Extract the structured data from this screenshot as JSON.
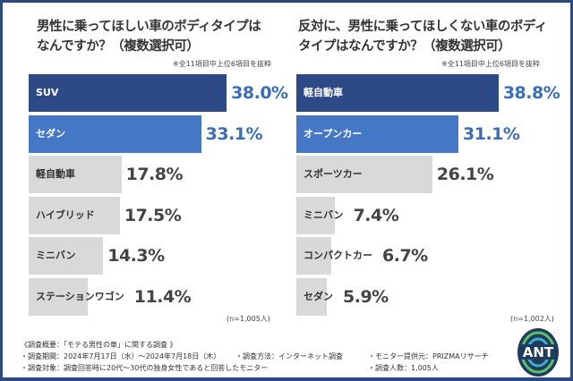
{
  "colors": {
    "primary": "#2d4a86",
    "secondary": "#4477c4",
    "other": "#d9d9d9"
  },
  "left": {
    "title_line1": "男性に乗ってほしい車のボディタイプは",
    "title_line2": "なんですか？（複数選択可）",
    "note": "※全11項目中上位6項目を抜粋",
    "n": "(n=1,005人)"
  },
  "right": {
    "title_line1": "反対に、男性に乗ってほしくない車のボディ",
    "title_line2": "タイプはなんですか？（複数選択可）",
    "note": "※全11項目中上位6項目を抜粋",
    "n": "(n=1,002人)"
  },
  "chart_data": [
    {
      "type": "bar",
      "orientation": "horizontal",
      "title": "男性に乗ってほしい車のボディタイプはなんですか？（複数選択可）",
      "categories": [
        "SUV",
        "セダン",
        "軽自動車",
        "ハイブリッド",
        "ミニバン",
        "ステーションワゴン"
      ],
      "values": [
        38.0,
        33.1,
        17.8,
        17.5,
        14.3,
        11.4
      ],
      "value_labels": [
        "38.0%",
        "33.1%",
        "17.8%",
        "17.5%",
        "14.3%",
        "11.4%"
      ],
      "unit": "%"
    },
    {
      "type": "bar",
      "orientation": "horizontal",
      "title": "反対に、男性に乗ってほしくない車のボディタイプはなんですか？（複数選択可）",
      "categories": [
        "軽自動車",
        "オープンカー",
        "スポーツカー",
        "ミニバン",
        "コンパクトカー",
        "セダン"
      ],
      "values": [
        38.8,
        31.1,
        26.1,
        7.4,
        6.7,
        5.9
      ],
      "value_labels": [
        "38.8%",
        "31.1%",
        "26.1%",
        "7.4%",
        "6.7%",
        "5.9%"
      ],
      "unit": "%"
    }
  ],
  "footer": {
    "heading": "《調査概要：「モテる男性の車」に関する調査 》",
    "period": "・調査期間：2024年7月17日（水）～2024年7月18日（木）",
    "method": "・調査方法：インターネット調査",
    "provider": "・モニター提供元：PRIZMAリサーチ",
    "target": "・調査対象：調査回答時に20代～30代の独身女性であると回答したモニター",
    "count": "・調査人数：1,005人"
  },
  "logo": {
    "text": "ANT"
  }
}
